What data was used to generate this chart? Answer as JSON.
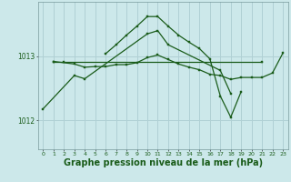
{
  "background_color": "#cce8ea",
  "grid_color": "#b0d0d4",
  "line_color": "#1a5c1a",
  "marker_color": "#1a5c1a",
  "xlabel": "Graphe pression niveau de la mer (hPa)",
  "xlabel_fontsize": 7,
  "ylabel_ticks": [
    1012,
    1013
  ],
  "xlim": [
    -0.5,
    23.5
  ],
  "ylim": [
    1011.55,
    1013.85
  ],
  "connected_series": [
    {
      "x": [
        1,
        3,
        4,
        5,
        6,
        7,
        8,
        9,
        10,
        11,
        12,
        13,
        14,
        15,
        16,
        17,
        18,
        19,
        20,
        21,
        22,
        23
      ],
      "y": [
        1012.92,
        1012.88,
        1012.83,
        1012.84,
        1012.84,
        1012.87,
        1012.87,
        1012.9,
        1012.98,
        1013.02,
        1012.95,
        1012.88,
        1012.83,
        1012.79,
        1012.72,
        1012.7,
        1012.64,
        1012.67,
        1012.67,
        1012.67,
        1012.74,
        1013.05
      ]
    },
    {
      "x": [
        1,
        2,
        21
      ],
      "y": [
        1012.92,
        1012.92,
        1012.92
      ]
    },
    {
      "x": [
        0,
        3,
        4,
        10,
        11,
        12,
        17,
        18
      ],
      "y": [
        1012.18,
        1012.7,
        1012.65,
        1013.35,
        1013.4,
        1013.18,
        1012.78,
        1012.42
      ]
    },
    {
      "x": [
        6,
        7,
        8,
        9,
        10,
        11,
        12,
        13,
        14,
        15,
        16,
        17,
        18,
        19
      ],
      "y": [
        1013.04,
        1013.18,
        1013.33,
        1013.47,
        1013.62,
        1013.62,
        1013.47,
        1013.33,
        1013.22,
        1013.12,
        1012.96,
        1012.38,
        1012.05,
        1012.45
      ]
    }
  ]
}
